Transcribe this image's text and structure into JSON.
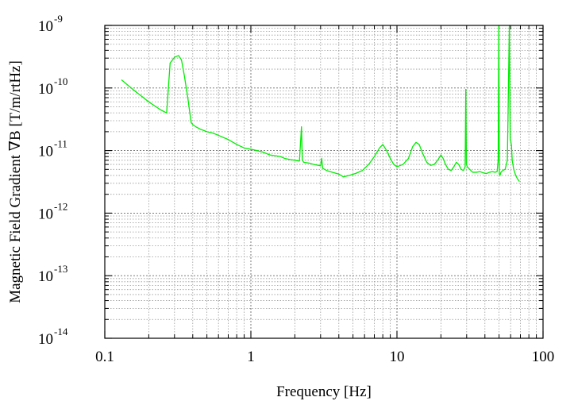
{
  "chart_data": {
    "type": "line",
    "title": "",
    "xlabel": "Frequency [Hz]",
    "ylabel": "Magnetic Field Gradient ∇B [T/m/rtHz]",
    "xscale": "log",
    "yscale": "log",
    "xlim": [
      0.1,
      100
    ],
    "ylim": [
      1e-14,
      1e-09
    ],
    "grid": true,
    "legend": "none",
    "x_ticks": [
      {
        "value": 0.1,
        "label": "0.1"
      },
      {
        "value": 1,
        "label": "1"
      },
      {
        "value": 10,
        "label": "10"
      },
      {
        "value": 100,
        "label": "100"
      }
    ],
    "y_ticks": [
      {
        "value": 1e-14,
        "base": "10",
        "exp": "-14"
      },
      {
        "value": 1e-13,
        "base": "10",
        "exp": "-13"
      },
      {
        "value": 1e-12,
        "base": "10",
        "exp": "-12"
      },
      {
        "value": 1e-11,
        "base": "10",
        "exp": "-11"
      },
      {
        "value": 1e-10,
        "base": "10",
        "exp": "-10"
      },
      {
        "value": 1e-09,
        "base": "10",
        "exp": "-9"
      }
    ],
    "series": [
      {
        "color": "#00ee00",
        "x": [
          0.13,
          0.16,
          0.2,
          0.24,
          0.265,
          0.28,
          0.3,
          0.32,
          0.335,
          0.35,
          0.37,
          0.39,
          0.4,
          0.42,
          0.45,
          0.5,
          0.55,
          0.6,
          0.7,
          0.8,
          0.9,
          1.0,
          1.1,
          1.2,
          1.35,
          1.5,
          1.6,
          1.7,
          1.85,
          2.0,
          2.15,
          2.22,
          2.25,
          2.3,
          2.5,
          2.7,
          2.9,
          3.0,
          3.05,
          3.1,
          3.3,
          3.6,
          4.0,
          4.3,
          4.7,
          5.2,
          5.8,
          6.4,
          7.0,
          7.6,
          8.0,
          8.5,
          9.0,
          9.5,
          10.0,
          11.0,
          12.0,
          12.8,
          13.5,
          14.2,
          15.0,
          16.0,
          17.0,
          18.0,
          19.0,
          20.0,
          20.7,
          21.5,
          22.5,
          23.5,
          24.5,
          25.5,
          26.5,
          27.5,
          28.5,
          29.3,
          29.6,
          29.9,
          30.3,
          31.5,
          33.0,
          35.0,
          37.0,
          39.0,
          41.0,
          43.0,
          45.0,
          47.0,
          48.5,
          49.3,
          49.8,
          50.2,
          50.7,
          51.5,
          53.0,
          55.0,
          57.0,
          58.8,
          59.6,
          60.2,
          60.8,
          61.5,
          63.0,
          65.0,
          67.0,
          69.0
        ],
        "y": [
          1.35e-10,
          9e-11,
          6e-11,
          4.5e-11,
          4e-11,
          2.5e-10,
          3.1e-10,
          3.3e-10,
          2.8e-10,
          1.6e-10,
          7e-11,
          2.8e-11,
          2.6e-11,
          2.4e-11,
          2.2e-11,
          2e-11,
          1.9e-11,
          1.75e-11,
          1.5e-11,
          1.25e-11,
          1.1e-11,
          1.05e-11,
          1e-11,
          9.5e-12,
          8.5e-12,
          8.2e-12,
          8e-12,
          7.5e-12,
          7.2e-12,
          7e-12,
          6.8e-12,
          2.4e-11,
          7e-12,
          6.5e-12,
          6.3e-12,
          6e-12,
          5.8e-12,
          5.7e-12,
          7.5e-12,
          5.2e-12,
          4.8e-12,
          4.5e-12,
          4.2e-12,
          3.8e-12,
          4e-12,
          4.3e-12,
          4.8e-12,
          6e-12,
          8e-12,
          1.1e-11,
          1.25e-11,
          1e-11,
          7.5e-12,
          6e-12,
          5.5e-12,
          6e-12,
          7.5e-12,
          1.15e-11,
          1.35e-11,
          1.25e-11,
          9e-12,
          6.5e-12,
          5.8e-12,
          6e-12,
          7e-12,
          8.5e-12,
          7.5e-12,
          6e-12,
          5e-12,
          4.8e-12,
          5.5e-12,
          6.5e-12,
          6e-12,
          5e-12,
          4.8e-12,
          5.5e-12,
          9.5e-11,
          6e-12,
          5.5e-12,
          5e-12,
          4.5e-12,
          4.5e-12,
          4.6e-12,
          4.4e-12,
          4.3e-12,
          4.5e-12,
          4.6e-12,
          4.5e-12,
          4.6e-12,
          7e-12,
          1e-09,
          4.2e-12,
          4e-12,
          4.5e-12,
          4.8e-12,
          5e-12,
          7e-12,
          1e-09,
          1.5e-11,
          1.4e-11,
          1.2e-11,
          7e-12,
          5e-12,
          4e-12,
          3.5e-12,
          3.2e-12
        ]
      }
    ]
  }
}
